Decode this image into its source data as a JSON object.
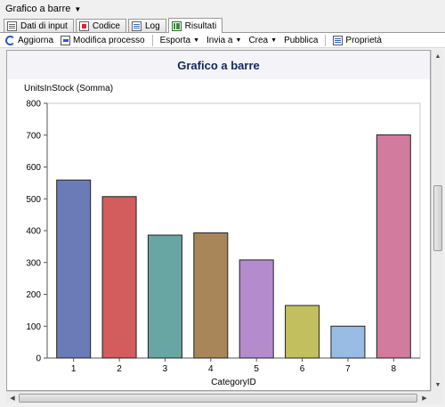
{
  "window": {
    "title": "Grafico a barre"
  },
  "tabs": [
    {
      "label": "Dati di input",
      "icon": "table-icon"
    },
    {
      "label": "Codice",
      "icon": "code-icon"
    },
    {
      "label": "Log",
      "icon": "log-icon"
    },
    {
      "label": "Risultati",
      "icon": "results-icon",
      "active": true
    }
  ],
  "toolbar": {
    "refresh_label": "Aggiorna",
    "edit_label": "Modifica processo",
    "export_label": "Esporta",
    "send_label": "Invia a",
    "create_label": "Crea",
    "publish_label": "Pubblica",
    "properties_label": "Proprietà"
  },
  "chart_data": {
    "type": "bar",
    "title": "Grafico a barre",
    "ylabel": "UnitsInStock (Somma)",
    "xlabel": "CategoryID",
    "categories": [
      "1",
      "2",
      "3",
      "4",
      "5",
      "6",
      "7",
      "8"
    ],
    "values": [
      559,
      507,
      386,
      393,
      308,
      165,
      100,
      701
    ],
    "colors": [
      "#6b7bb8",
      "#d35c5c",
      "#67a6a2",
      "#a8865a",
      "#b48bcc",
      "#c2bf5e",
      "#98bce4",
      "#d27b9e"
    ],
    "ylim": [
      0,
      800
    ],
    "yticks": [
      0,
      100,
      200,
      300,
      400,
      500,
      600,
      700,
      800
    ],
    "grid": false,
    "legend": "none"
  }
}
